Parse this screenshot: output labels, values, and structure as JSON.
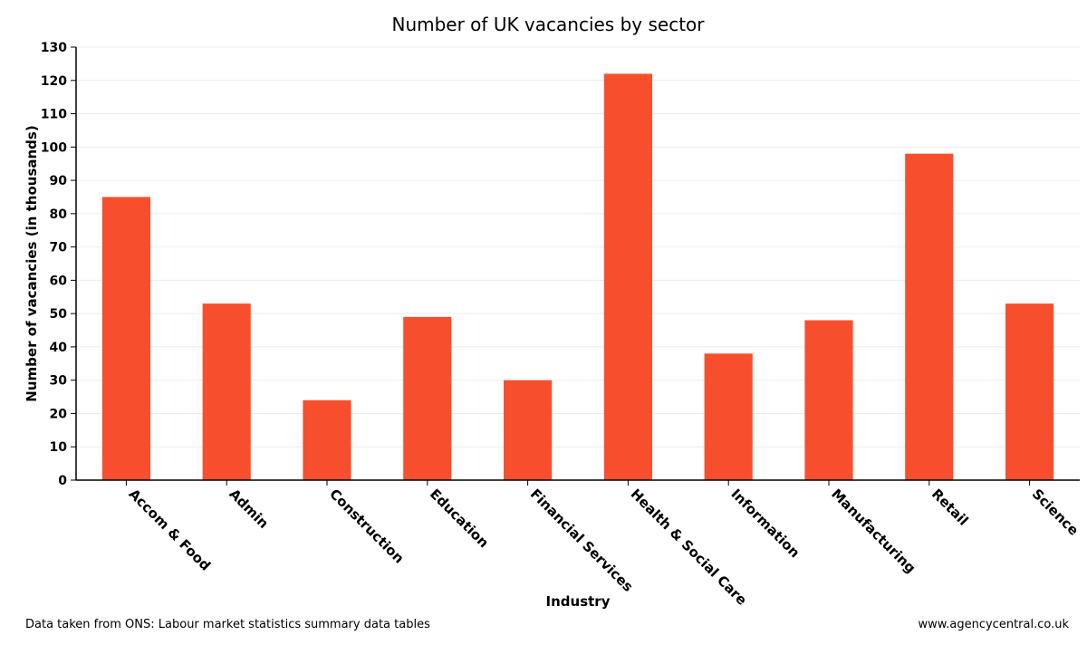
{
  "chart_data": {
    "type": "bar",
    "title": "Number of UK vacancies by sector",
    "xlabel": "Industry",
    "ylabel": "Number of vacancies (in thousands)",
    "categories": [
      "Accom & Food",
      "Admin",
      "Construction",
      "Education",
      "Financial Services",
      "Health & Social Care",
      "Information",
      "Manufacturing",
      "Retail",
      "Science"
    ],
    "values": [
      85,
      53,
      24,
      49,
      30,
      122,
      38,
      48,
      98,
      53
    ],
    "ylim": [
      0,
      130
    ],
    "yticks": [
      0,
      10,
      20,
      30,
      40,
      50,
      60,
      70,
      80,
      90,
      100,
      110,
      120,
      130
    ],
    "grid": true,
    "bar_color": "#f74f2d"
  },
  "footer": {
    "source": "Data taken from ONS: Labour market statistics summary data tables",
    "site": "www.agencycentral.co.uk"
  }
}
